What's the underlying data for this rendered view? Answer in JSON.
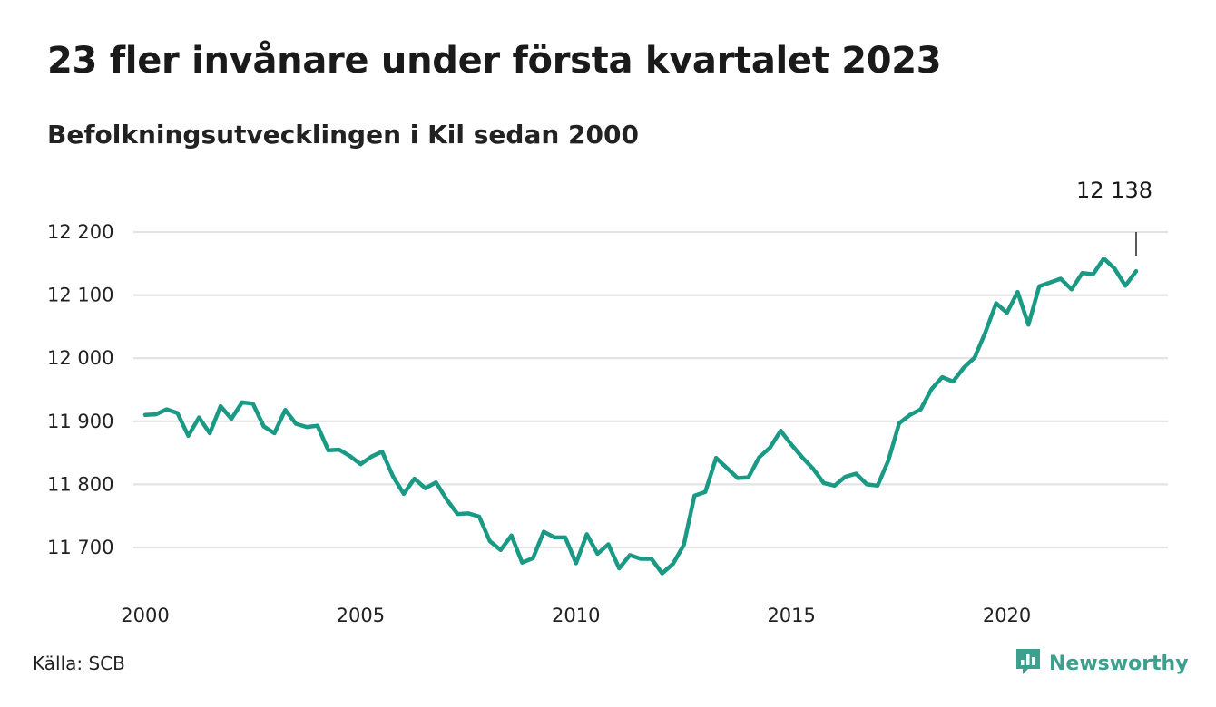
{
  "title": "23 fler invånare under första kvartalet 2023",
  "subtitle": "Befolkningsutvecklingen i Kil sedan 2000",
  "source": "Källa: SCB",
  "brand": {
    "name": "Newsworthy",
    "icon": "newsworthy-logo-icon",
    "color": "#3d9f8d"
  },
  "colors": {
    "line": "#1a9985",
    "grid": "#e3e3e3",
    "text": "#1a1a1a"
  },
  "chart_data": {
    "type": "line",
    "title": "23 fler invånare under första kvartalet 2023",
    "subtitle": "Befolkningsutvecklingen i Kil sedan 2000",
    "xlabel": "",
    "ylabel": "",
    "xlim": [
      2000,
      2023.25
    ],
    "ylim": [
      11635,
      12205
    ],
    "grid": true,
    "x_ticks": [
      2000,
      2005,
      2010,
      2015,
      2020
    ],
    "x_tick_labels": [
      "2000",
      "2005",
      "2010",
      "2015",
      "2020"
    ],
    "y_ticks": [
      11700,
      11800,
      11900,
      12000,
      12100,
      12200
    ],
    "y_tick_labels": [
      "11 700",
      "11 800",
      "11 900",
      "12 000",
      "12 100",
      "12 200"
    ],
    "annotation": {
      "x": 2023,
      "label": "12 138"
    },
    "series": [
      {
        "x": [
          2000,
          2000.25,
          2000.5,
          2000.75,
          2001,
          2001.25,
          2001.5,
          2001.75,
          2002,
          2002.25,
          2002.5,
          2002.75,
          2003,
          2003.25,
          2003.5,
          2003.75,
          2004,
          2004.25,
          2004.5,
          2004.75,
          2005,
          2005.25,
          2005.5,
          2005.75,
          2006,
          2006.25,
          2006.5,
          2006.75,
          2007,
          2007.25,
          2007.5,
          2007.75,
          2008,
          2008.25,
          2008.5,
          2008.75,
          2009,
          2009.25,
          2009.5,
          2009.75,
          2010,
          2010.25,
          2010.5,
          2010.75,
          2011,
          2011.25,
          2011.5,
          2011.75,
          2012,
          2012.25,
          2012.5,
          2012.75,
          2013,
          2013.25,
          2013.5,
          2013.75,
          2014,
          2014.25,
          2014.5,
          2014.75,
          2015,
          2015.25,
          2015.5,
          2015.75,
          2016,
          2016.25,
          2016.5,
          2016.75,
          2017,
          2017.25,
          2017.5,
          2017.75,
          2018,
          2018.25,
          2018.5,
          2018.75,
          2019,
          2019.25,
          2019.5,
          2019.75,
          2020,
          2020.25,
          2020.5,
          2020.75,
          2021,
          2021.25,
          2021.5,
          2021.75,
          2022,
          2022.25,
          2022.5,
          2022.75,
          2023
        ],
        "values": [
          11910,
          11911,
          11919,
          11913,
          11877,
          11906,
          11881,
          11924,
          11904,
          11930,
          11928,
          11892,
          11881,
          11918,
          11896,
          11891,
          11893,
          11854,
          11855,
          11845,
          11832,
          11844,
          11852,
          11813,
          11785,
          11809,
          11794,
          11803,
          11776,
          11753,
          11754,
          11749,
          11710,
          11696,
          11719,
          11676,
          11683,
          11725,
          11716,
          11716,
          11675,
          11721,
          11690,
          11705,
          11667,
          11688,
          11682,
          11682,
          11659,
          11674,
          11704,
          11782,
          11788,
          11842,
          11826,
          11810,
          11811,
          11843,
          11858,
          11885,
          11863,
          11843,
          11825,
          11802,
          11798,
          11812,
          11817,
          11800,
          11798,
          11838,
          11897,
          11910,
          11919,
          11951,
          11970,
          11963,
          11985,
          12001,
          12041,
          12087,
          12072,
          12105,
          12053,
          12114,
          12120,
          12126,
          12109,
          12135,
          12133,
          12158,
          12142,
          12115,
          12138
        ]
      }
    ]
  }
}
